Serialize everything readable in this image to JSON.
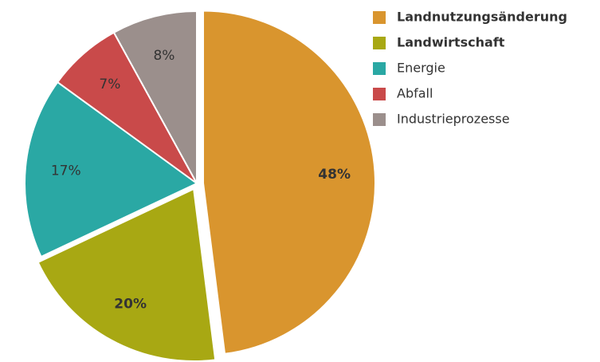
{
  "chart_data": {
    "type": "pie",
    "categories": [
      "Landnutzungsänderung",
      "Landwirtschaft",
      "Energie",
      "Abfall",
      "Industrieprozesse"
    ],
    "values": [
      48,
      20,
      17,
      7,
      8
    ],
    "value_labels": [
      "48%",
      "20%",
      "17%",
      "7%",
      "8%"
    ],
    "colors": [
      "#d9952e",
      "#a8a813",
      "#2aa8a4",
      "#c94a4a",
      "#9b8f8c"
    ],
    "legend": "top-right"
  }
}
